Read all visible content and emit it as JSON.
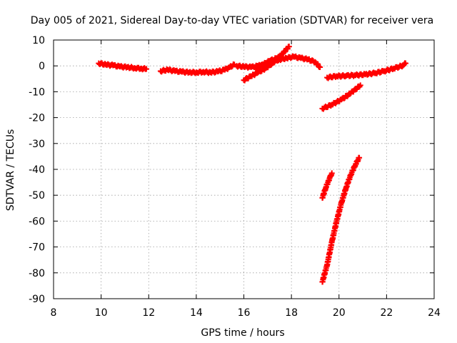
{
  "chart_data": {
    "type": "scatter",
    "title": "Day 005 of 2021, Sidereal Day-to-day VTEC variation (SDTVAR) for receiver vera",
    "xlabel": "GPS time / hours",
    "ylabel": "SDTVAR / TECUs",
    "xlim": [
      8,
      24
    ],
    "ylim": [
      -90,
      10
    ],
    "xticks": [
      8,
      10,
      12,
      14,
      16,
      18,
      20,
      22,
      24
    ],
    "yticks": [
      10,
      0,
      -10,
      -20,
      -30,
      -40,
      -50,
      -60,
      -70,
      -80,
      -90
    ],
    "grid": true,
    "marker": "+",
    "color": "#ff0000",
    "series": [
      {
        "points": [
          [
            9.9,
            1.0
          ],
          [
            10.2,
            0.5
          ],
          [
            10.5,
            0.2
          ],
          [
            10.8,
            -0.3
          ],
          [
            11.1,
            -0.5
          ],
          [
            11.4,
            -0.8
          ],
          [
            11.7,
            -1.0
          ],
          [
            11.9,
            -1.2
          ]
        ]
      },
      {
        "points": [
          [
            12.5,
            -2.0
          ],
          [
            12.8,
            -1.5
          ],
          [
            13.1,
            -2.0
          ],
          [
            13.4,
            -2.3
          ],
          [
            13.7,
            -2.5
          ],
          [
            14.0,
            -2.5
          ],
          [
            14.3,
            -2.3
          ],
          [
            14.6,
            -2.5
          ],
          [
            14.9,
            -2.2
          ],
          [
            15.2,
            -1.5
          ],
          [
            15.4,
            -0.5
          ],
          [
            15.6,
            0.5
          ]
        ]
      },
      {
        "points": [
          [
            15.7,
            0.0
          ],
          [
            16.0,
            -0.3
          ],
          [
            16.3,
            -0.5
          ],
          [
            16.6,
            0.0
          ],
          [
            16.9,
            0.5
          ],
          [
            17.2,
            1.5
          ],
          [
            17.5,
            2.5
          ],
          [
            17.8,
            3.0
          ],
          [
            18.1,
            3.5
          ],
          [
            18.4,
            3.0
          ],
          [
            18.7,
            2.5
          ],
          [
            19.0,
            1.5
          ],
          [
            19.2,
            -0.5
          ]
        ]
      },
      {
        "points": [
          [
            16.0,
            -5.5
          ],
          [
            16.3,
            -4.0
          ],
          [
            16.6,
            -2.5
          ],
          [
            16.9,
            -1.0
          ],
          [
            17.2,
            1.0
          ],
          [
            17.5,
            3.5
          ],
          [
            17.7,
            5.5
          ],
          [
            17.9,
            7.5
          ]
        ]
      },
      {
        "points": [
          [
            16.5,
            -1.0
          ],
          [
            16.8,
            0.5
          ],
          [
            17.1,
            2.0
          ],
          [
            17.4,
            3.0
          ],
          [
            17.6,
            3.5
          ]
        ]
      },
      {
        "points": [
          [
            19.5,
            -4.5
          ],
          [
            19.9,
            -4.0
          ],
          [
            20.3,
            -3.8
          ],
          [
            20.7,
            -3.6
          ],
          [
            21.1,
            -3.3
          ],
          [
            21.5,
            -2.8
          ],
          [
            21.9,
            -2.0
          ],
          [
            22.3,
            -1.0
          ],
          [
            22.7,
            0.2
          ],
          [
            22.8,
            1.0
          ]
        ]
      },
      {
        "points": [
          [
            19.3,
            -16.5
          ],
          [
            19.7,
            -15.0
          ],
          [
            20.1,
            -13.0
          ],
          [
            20.5,
            -10.5
          ],
          [
            20.9,
            -7.5
          ]
        ]
      },
      {
        "points": [
          [
            19.3,
            -51.0
          ],
          [
            19.45,
            -47.0
          ],
          [
            19.6,
            -43.5
          ],
          [
            19.7,
            -41.5
          ]
        ]
      },
      {
        "points": [
          [
            19.3,
            -83.5
          ],
          [
            19.5,
            -77.0
          ],
          [
            19.7,
            -68.0
          ],
          [
            19.9,
            -60.0
          ],
          [
            20.1,
            -53.0
          ],
          [
            20.3,
            -47.0
          ],
          [
            20.5,
            -42.0
          ],
          [
            20.7,
            -38.0
          ],
          [
            20.85,
            -35.5
          ]
        ]
      }
    ]
  }
}
